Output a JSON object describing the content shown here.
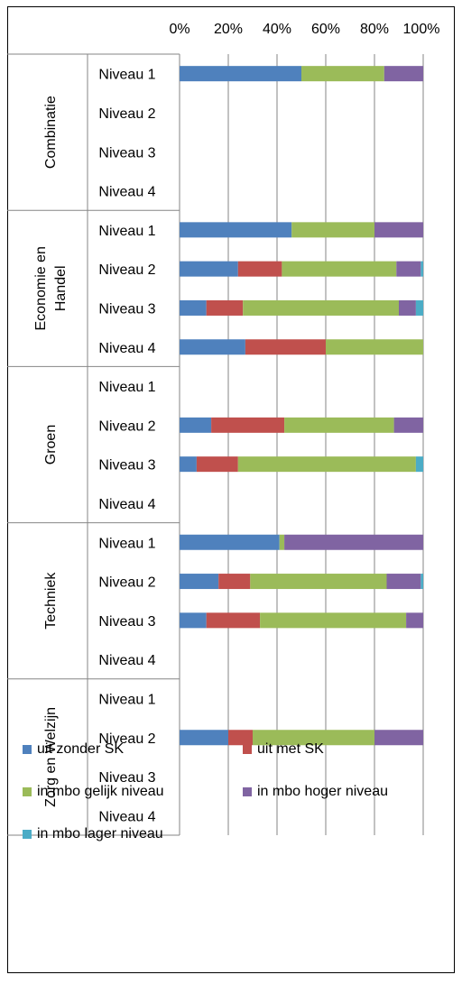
{
  "chart_data": {
    "type": "bar",
    "orientation": "horizontal",
    "stacked": "percent",
    "grid": true,
    "legend_position": "bottom",
    "xlim": [
      0,
      100
    ],
    "tick_labels": [
      "0%",
      "20%",
      "40%",
      "60%",
      "80%",
      "100%"
    ],
    "groups": [
      {
        "name": "Combinatie",
        "rows": [
          {
            "label": "Niveau 1",
            "values": [
              50,
              0,
              34,
              16,
              0
            ]
          },
          {
            "label": "Niveau 2",
            "values": [
              0,
              0,
              0,
              0,
              0
            ]
          },
          {
            "label": "Niveau 3",
            "values": [
              0,
              0,
              0,
              0,
              0
            ]
          },
          {
            "label": "Niveau 4",
            "values": [
              0,
              0,
              0,
              0,
              0
            ]
          }
        ]
      },
      {
        "name": "Economie en Handel",
        "rows": [
          {
            "label": "Niveau 1",
            "values": [
              46,
              0,
              34,
              20,
              0
            ]
          },
          {
            "label": "Niveau 2",
            "values": [
              24,
              18,
              47,
              10,
              1
            ]
          },
          {
            "label": "Niveau 3",
            "values": [
              11,
              15,
              64,
              7,
              3
            ]
          },
          {
            "label": "Niveau 4",
            "values": [
              27,
              33,
              40,
              0,
              0
            ]
          }
        ]
      },
      {
        "name": "Groen",
        "rows": [
          {
            "label": "Niveau 1",
            "values": [
              0,
              0,
              0,
              0,
              0
            ]
          },
          {
            "label": "Niveau 2",
            "values": [
              13,
              30,
              45,
              12,
              0
            ]
          },
          {
            "label": "Niveau 3",
            "values": [
              7,
              17,
              73,
              0,
              3
            ]
          },
          {
            "label": "Niveau 4",
            "values": [
              0,
              0,
              0,
              0,
              0
            ]
          }
        ]
      },
      {
        "name": "Techniek",
        "rows": [
          {
            "label": "Niveau 1",
            "values": [
              41,
              0,
              2,
              57,
              0
            ]
          },
          {
            "label": "Niveau 2",
            "values": [
              16,
              13,
              56,
              14,
              1
            ]
          },
          {
            "label": "Niveau 3",
            "values": [
              11,
              22,
              60,
              7,
              0
            ]
          },
          {
            "label": "Niveau 4",
            "values": [
              0,
              0,
              0,
              0,
              0
            ]
          }
        ]
      },
      {
        "name": "Zorg en Welzijn",
        "rows": [
          {
            "label": "Niveau 1",
            "values": [
              0,
              0,
              0,
              0,
              0
            ]
          },
          {
            "label": "Niveau 2",
            "values": [
              20,
              10,
              50,
              20,
              0
            ]
          },
          {
            "label": "Niveau 3",
            "values": [
              0,
              0,
              0,
              0,
              0
            ]
          },
          {
            "label": "Niveau 4",
            "values": [
              0,
              0,
              0,
              0,
              0
            ]
          }
        ]
      }
    ],
    "series": [
      {
        "name": "uit zonder SK",
        "color": "#4f81bd"
      },
      {
        "name": "uit met SK",
        "color": "#c0504d"
      },
      {
        "name": "in mbo gelijk niveau",
        "color": "#9bbb59"
      },
      {
        "name": "in mbo hoger niveau",
        "color": "#8064a2"
      },
      {
        "name": "in mbo lager niveau",
        "color": "#4bacc6"
      }
    ]
  }
}
